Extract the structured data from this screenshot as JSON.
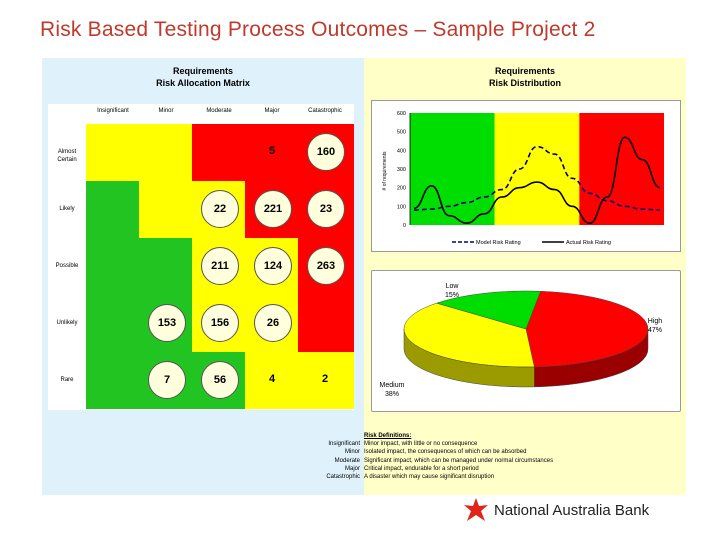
{
  "title": "Risk Based Testing Process Outcomes – Sample Project 2",
  "matrix": {
    "title_line1": "Requirements",
    "title_line2": "Risk Allocation Matrix",
    "columns": [
      "Insignificant",
      "Minor",
      "Moderate",
      "Major",
      "Catastrophic"
    ],
    "rows": [
      "Almost Certain",
      "Likely",
      "Possible",
      "Unlikely",
      "Rare"
    ],
    "colors": {
      "green": "#22c422",
      "yellow": "#ffff00",
      "red": "#ff0000"
    },
    "cells": [
      [
        {
          "c": "yellow",
          "v": ""
        },
        {
          "c": "yellow",
          "v": ""
        },
        {
          "c": "red",
          "v": ""
        },
        {
          "c": "red",
          "v": "5"
        },
        {
          "c": "red",
          "v": "160",
          "circle": true
        }
      ],
      [
        {
          "c": "green",
          "v": ""
        },
        {
          "c": "yellow",
          "v": ""
        },
        {
          "c": "yellow",
          "v": "22",
          "circle": true
        },
        {
          "c": "red",
          "v": "221",
          "circle": true
        },
        {
          "c": "red",
          "v": "23",
          "circle": true
        }
      ],
      [
        {
          "c": "green",
          "v": ""
        },
        {
          "c": "green",
          "v": ""
        },
        {
          "c": "yellow",
          "v": "211",
          "circle": true
        },
        {
          "c": "yellow",
          "v": "124",
          "circle": true
        },
        {
          "c": "red",
          "v": "263",
          "circle": true
        }
      ],
      [
        {
          "c": "green",
          "v": ""
        },
        {
          "c": "green",
          "v": "153",
          "circle": true
        },
        {
          "c": "yellow",
          "v": "156",
          "circle": true
        },
        {
          "c": "yellow",
          "v": "26",
          "circle": true
        },
        {
          "c": "red",
          "v": ""
        }
      ],
      [
        {
          "c": "green",
          "v": ""
        },
        {
          "c": "green",
          "v": "7",
          "circle": true
        },
        {
          "c": "green",
          "v": "56",
          "circle": true
        },
        {
          "c": "yellow",
          "v": "4"
        },
        {
          "c": "yellow",
          "v": "2"
        }
      ]
    ]
  },
  "distribution": {
    "title_line1": "Requirements",
    "title_line2": "Risk Distribution",
    "ylabel": "# of requirements",
    "ylim": [
      0,
      600
    ],
    "yticks": [
      "0",
      "100",
      "200",
      "300",
      "400",
      "500",
      "600"
    ],
    "legend": [
      "Model Risk Rating",
      "Actual Risk Rating"
    ],
    "bands": [
      "#00dd00",
      "#ffff00",
      "#ff0000"
    ]
  },
  "chart_data": [
    {
      "type": "line",
      "ylabel": "# of requirements",
      "ylim": [
        0,
        600
      ],
      "legend_position": "bottom",
      "series": [
        {
          "name": "Model Risk Rating",
          "style": "dashed",
          "values": [
            80,
            85,
            100,
            120,
            150,
            190,
            300,
            420,
            380,
            250,
            170,
            130,
            100,
            85,
            80
          ]
        },
        {
          "name": "Actual Risk Rating",
          "style": "solid",
          "values": [
            90,
            210,
            50,
            10,
            60,
            150,
            200,
            230,
            190,
            100,
            10,
            150,
            470,
            350,
            200
          ]
        }
      ]
    },
    {
      "type": "pie",
      "slices": [
        {
          "label": "High",
          "pct": "47%",
          "value": 47,
          "color": "#ff0000"
        },
        {
          "label": "Medium",
          "pct": "38%",
          "value": 38,
          "color": "#ffff00"
        },
        {
          "label": "Low",
          "pct": "15%",
          "value": 15,
          "color": "#00dd00"
        }
      ]
    }
  ],
  "definitions": {
    "header": "Risk Definitions:",
    "items": [
      {
        "k": "Insignificant",
        "v": "Minor impact, with little or no consequence"
      },
      {
        "k": "Minor",
        "v": "Isolated impact, the consequences of which can be absorbed"
      },
      {
        "k": "Moderate",
        "v": "Significant impact, which can be managed under normal circumstances"
      },
      {
        "k": "Major",
        "v": "Critical impact, endurable for a short period"
      },
      {
        "k": "Catastrophic",
        "v": "A disaster which may cause significant disruption"
      }
    ]
  },
  "logo": {
    "text": "National Australia Bank",
    "icon": "star-icon",
    "color": "#e2231a"
  }
}
